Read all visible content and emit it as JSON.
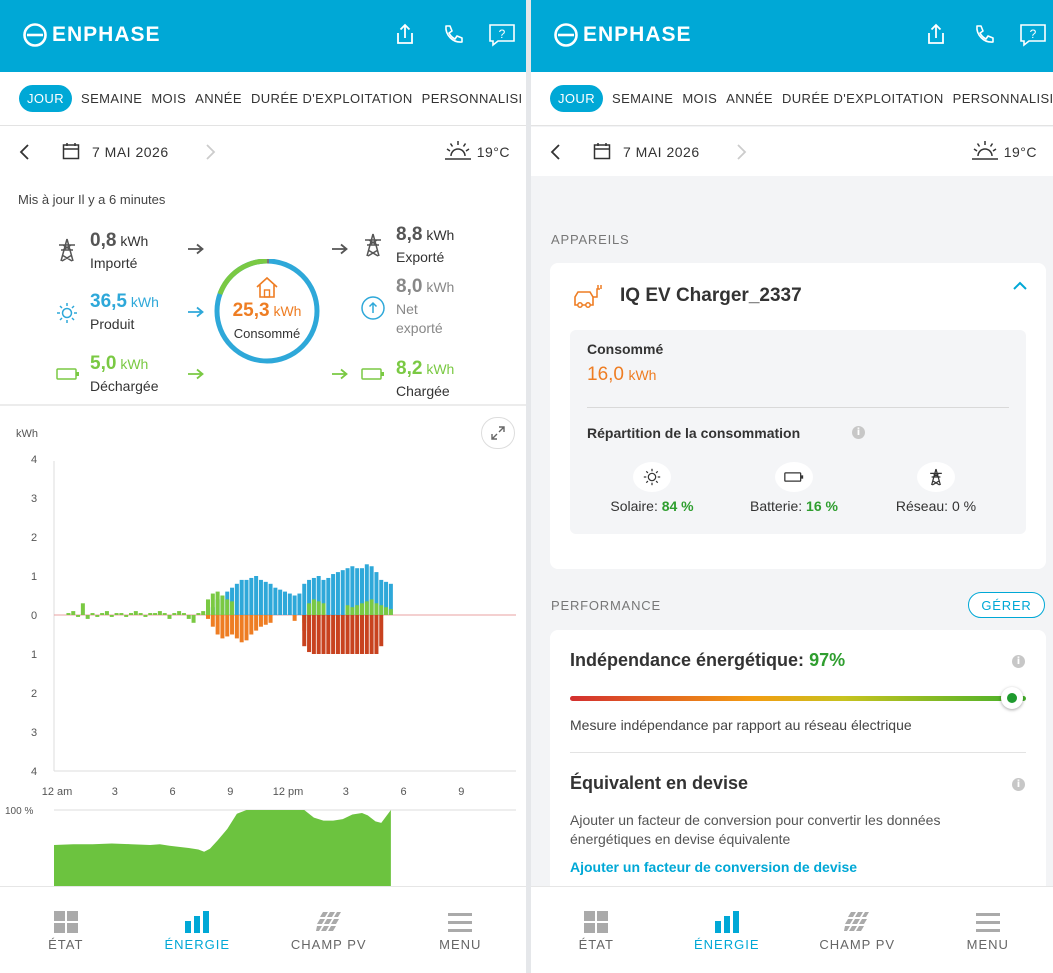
{
  "app": {
    "brand": "ENPHASE",
    "accent": "#00a8d6"
  },
  "tabs": [
    "JOUR",
    "SEMAINE",
    "MOIS",
    "ANNÉE",
    "DURÉE D'EXPLOITATION",
    "PERSONNALISÉ"
  ],
  "tabs_visible": [
    "JOUR",
    "SEMAINE",
    "MOIS",
    "ANNÉE",
    "DURÉE D'EXPLOITATION",
    "PERSONNALISI"
  ],
  "date": "7 MAI 2026",
  "weather": {
    "icon": "partly-sunny-icon",
    "temp": "19°C"
  },
  "left": {
    "updated": "Mis à jour Il y a 6 minutes",
    "imported": {
      "value": "0,8",
      "unit": "kWh",
      "label": "Importé"
    },
    "exported": {
      "value": "8,8",
      "unit": "kWh",
      "label": "Exporté"
    },
    "produced": {
      "value": "36,5",
      "unit": "kWh",
      "label": "Produit"
    },
    "net_exported": {
      "value": "8,0",
      "unit": "kWh",
      "label1": "Net",
      "label2": "exporté"
    },
    "discharged": {
      "value": "5,0",
      "unit": "kWh",
      "label": "Déchargée"
    },
    "charged": {
      "value": "8,2",
      "unit": "kWh",
      "label": "Chargée"
    },
    "consumed": {
      "value": "25,3",
      "unit": "kWh",
      "label": "Consommé"
    }
  },
  "chart_data": [
    {
      "type": "bar",
      "ylabel": "kWh",
      "yticks": [
        "4",
        "3",
        "2",
        "1",
        "0",
        "1",
        "2",
        "3",
        "4"
      ],
      "ylim": [
        -4,
        4
      ],
      "xticks": [
        "12 am",
        "3",
        "6",
        "9",
        "12 pm",
        "3",
        "6",
        "9"
      ],
      "x_hours": [
        0,
        24
      ],
      "series": [
        {
          "color": "#2ea8d9",
          "hours": [
            8.0,
            8.25,
            8.5,
            8.75,
            9.0,
            9.25,
            9.5,
            9.75,
            10.0,
            10.25,
            10.5,
            10.75,
            11.0,
            11.25,
            11.5,
            11.75,
            12.0,
            12.25,
            12.5,
            12.75,
            13.0,
            13.25,
            13.5,
            13.75,
            14.0,
            14.25,
            14.5,
            14.75,
            15.0,
            15.25,
            15.5,
            15.75,
            16.0,
            16.25,
            16.5,
            16.75,
            17.0,
            17.25,
            17.5
          ],
          "values": [
            0.1,
            0.2,
            0.4,
            0.5,
            0.6,
            0.7,
            0.8,
            0.9,
            0.9,
            0.95,
            1.0,
            0.9,
            0.85,
            0.8,
            0.7,
            0.65,
            0.6,
            0.55,
            0.5,
            0.55,
            0.8,
            0.9,
            0.95,
            1.0,
            0.9,
            0.95,
            1.05,
            1.1,
            1.15,
            1.2,
            1.25,
            1.2,
            1.2,
            1.3,
            1.25,
            1.1,
            0.9,
            0.85,
            0.8
          ]
        },
        {
          "color": "#7ac943",
          "hours": [
            0.75,
            1.0,
            1.25,
            1.5,
            1.75,
            2.0,
            2.25,
            2.5,
            2.75,
            3.0,
            3.25,
            3.5,
            3.75,
            4.0,
            4.25,
            4.5,
            4.75,
            5.0,
            5.25,
            5.5,
            5.75,
            6.0,
            6.25,
            6.5,
            6.75,
            7.0,
            7.25,
            7.5,
            7.75,
            8.0,
            8.25,
            8.5,
            8.75,
            9.0,
            9.25,
            13.0,
            13.25,
            13.5,
            13.75,
            14.0,
            15.25,
            15.5,
            15.75,
            16.0,
            16.25,
            16.5,
            16.75,
            17.0,
            17.25,
            17.5
          ],
          "values": [
            0.05,
            0.1,
            -0.05,
            0.3,
            -0.1,
            0.05,
            -0.05,
            0.05,
            0.1,
            -0.05,
            0.05,
            0.05,
            -0.05,
            0.05,
            0.1,
            0.05,
            -0.05,
            0.05,
            0.05,
            0.1,
            0.05,
            -0.1,
            0.05,
            0.1,
            0.05,
            -0.1,
            -0.2,
            0.05,
            0.1,
            0.4,
            0.55,
            0.6,
            0.5,
            0.4,
            0.35,
            -0.2,
            0.3,
            0.4,
            0.35,
            0.3,
            0.25,
            0.2,
            0.25,
            0.3,
            0.35,
            0.4,
            0.3,
            0.25,
            0.2,
            0.15
          ]
        },
        {
          "color": "#ee7d23",
          "hours": [
            8.0,
            8.25,
            8.5,
            8.75,
            9.0,
            9.25,
            9.5,
            9.75,
            10.0,
            10.25,
            10.5,
            10.75,
            11.0,
            11.25,
            12.5,
            13.0
          ],
          "values": [
            -0.1,
            -0.3,
            -0.5,
            -0.6,
            -0.55,
            -0.5,
            -0.6,
            -0.7,
            -0.65,
            -0.5,
            -0.4,
            -0.3,
            -0.25,
            -0.2,
            -0.15,
            -0.4
          ]
        },
        {
          "color": "#c8421f",
          "hours": [
            13.0,
            13.25,
            13.5,
            13.75,
            14.0,
            14.25,
            14.5,
            14.75,
            15.0,
            15.25,
            15.5,
            15.75,
            16.0,
            16.25,
            16.5,
            16.75,
            17.0
          ],
          "values": [
            -0.8,
            -0.95,
            -1.0,
            -1.0,
            -1.0,
            -1.0,
            -1.0,
            -1.0,
            -1.0,
            -1.0,
            -1.0,
            -1.0,
            -1.0,
            -1.0,
            -1.0,
            -1.0,
            -0.8
          ]
        }
      ]
    },
    {
      "type": "area",
      "ytick": "100 %",
      "ylim": [
        0,
        100
      ],
      "x_hours": [
        0,
        17.5
      ],
      "color": "#6cc33f",
      "points": [
        [
          0,
          54
        ],
        [
          1,
          55
        ],
        [
          2,
          55
        ],
        [
          3,
          56
        ],
        [
          4,
          55
        ],
        [
          5,
          54
        ],
        [
          5.5,
          55
        ],
        [
          6,
          53
        ],
        [
          7,
          50
        ],
        [
          7.5,
          48
        ],
        [
          7.8,
          45
        ],
        [
          8.1,
          49
        ],
        [
          8.5,
          60
        ],
        [
          9,
          75
        ],
        [
          9.5,
          95
        ],
        [
          10,
          100
        ],
        [
          11,
          100
        ],
        [
          12,
          100
        ],
        [
          13,
          100
        ],
        [
          13.5,
          90
        ],
        [
          14,
          86
        ],
        [
          14.5,
          86
        ],
        [
          15,
          88
        ],
        [
          15.5,
          94
        ],
        [
          16,
          96
        ],
        [
          16.3,
          93
        ],
        [
          16.7,
          85
        ],
        [
          17,
          83
        ],
        [
          17.5,
          100
        ]
      ]
    }
  ],
  "right": {
    "devices_label": "APPAREILS",
    "device_name": "IQ EV Charger_2337",
    "consumed_label": "Consommé",
    "consumed_value": "16,0",
    "consumed_unit": "kWh",
    "breakdown_title": "Répartition de la consommation",
    "breakdown": [
      {
        "icon": "sun-icon",
        "label": "Solaire:",
        "value": "84 %"
      },
      {
        "icon": "battery-icon",
        "label": "Batterie:",
        "value": "16 %"
      },
      {
        "icon": "grid-tower-icon",
        "label": "Réseau:",
        "value": "0 %"
      }
    ],
    "performance_label": "PERFORMANCE",
    "manage_button": "GÉRER",
    "independence_label": "Indépendance énergétique:",
    "independence_value": "97%",
    "independence_fraction": 0.97,
    "independence_desc": "Mesure indépendance par rapport au réseau électrique",
    "currency_title": "Équivalent en devise",
    "currency_desc1": "Ajouter un facteur de conversion pour convertir les données",
    "currency_desc2": "énergétiques en devise équivalente",
    "currency_link": "Ajouter un facteur de conversion de devise"
  },
  "nav": [
    {
      "label": "ÉTAT",
      "icon": "grid-squares-icon"
    },
    {
      "label": "ÉNERGIE",
      "icon": "bar-chart-icon"
    },
    {
      "label": "CHAMP PV",
      "icon": "solar-panels-icon"
    },
    {
      "label": "MENU",
      "icon": "hamburger-icon"
    }
  ],
  "colors": {
    "orange": "#ee7d23",
    "green": "#7ac943",
    "blue": "#2ea8d9",
    "grey": "#555555"
  }
}
